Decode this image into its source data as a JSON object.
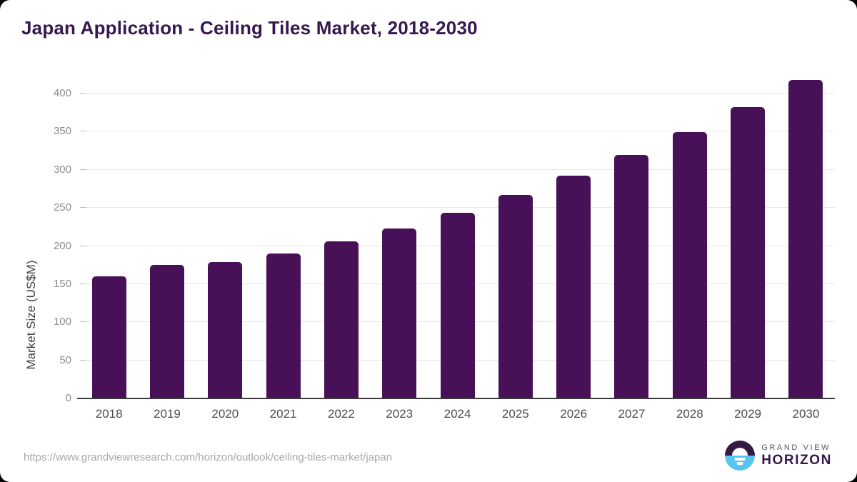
{
  "header": {
    "title": "Japan Application - Ceiling Tiles Market, 2018-2030"
  },
  "chart_data": {
    "type": "bar",
    "title": "Japan Application - Ceiling Tiles Market, 2018-2030",
    "categories": [
      "2018",
      "2019",
      "2020",
      "2021",
      "2022",
      "2023",
      "2024",
      "2025",
      "2026",
      "2027",
      "2028",
      "2029",
      "2030"
    ],
    "values": [
      160,
      175,
      179,
      190,
      206,
      223,
      244,
      267,
      292,
      319,
      349,
      382,
      418
    ],
    "xlabel": "",
    "ylabel": "Market Size (US$M)",
    "ylim": [
      0,
      430
    ],
    "yticks": [
      0,
      50,
      100,
      150,
      200,
      250,
      300,
      350,
      400
    ],
    "grid": true,
    "legend_position": "none",
    "bar_color": "#481157"
  },
  "footer": {
    "source_url": "https://www.grandviewresearch.com/horizon/outlook/ceiling-tiles-market/japan",
    "logo": {
      "line1": "GRAND VIEW",
      "line2": "HORIZON"
    }
  },
  "colors": {
    "title_text": "#35184e",
    "bar": "#481157",
    "gridline": "#e7e7e7",
    "axis_line": "#3a3a3a",
    "y_tick_text": "#8b8b8b",
    "x_tick_text": "#4d4d4d",
    "source_text": "#a8a8a8",
    "logo_blue": "#57c5f1",
    "logo_purple": "#331a43"
  }
}
